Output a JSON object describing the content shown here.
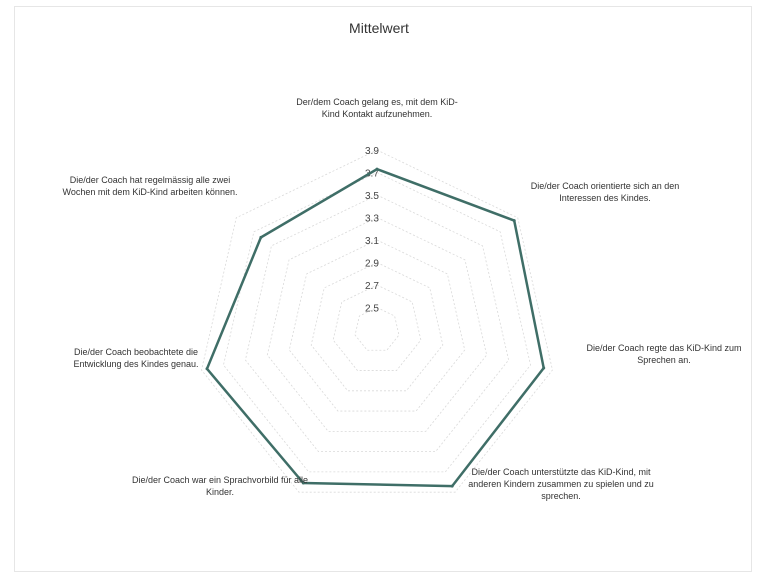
{
  "chart_data": {
    "type": "radar",
    "title": "Mittelwert",
    "axes": [
      "Der/dem Coach gelang es, mit dem KiD-Kind Kontakt aufzunehmen.",
      "Die/der Coach orientierte sich an den Interessen des Kindes.",
      "Die/der Coach regte das KiD-Kind zum Sprechen an.",
      "Die/der Coach unterstützte das KiD-Kind, mit anderen Kindern zusammen zu spielen und zu sprechen.",
      "Die/der Coach war ein Sprachvorbild für alle Kinder.",
      "Die/der Coach beobachtete die Entwicklung des Kindes genau.",
      "Die/der Coach hat regelmässig alle zwei Wochen mit dem KiD-Kind arbeiten können."
    ],
    "series": [
      {
        "values": [
          3.73,
          3.86,
          3.82,
          3.84,
          3.81,
          3.85,
          3.62
        ]
      }
    ],
    "r_ticks": [
      "2.5",
      "2.7",
      "2.9",
      "3.1",
      "3.3",
      "3.5",
      "3.7",
      "3.9"
    ],
    "r_min": 2.3,
    "r_max": 3.9,
    "grid": true,
    "colors": {
      "series": "#3f6e67",
      "grid": "#d9d9d9"
    }
  }
}
